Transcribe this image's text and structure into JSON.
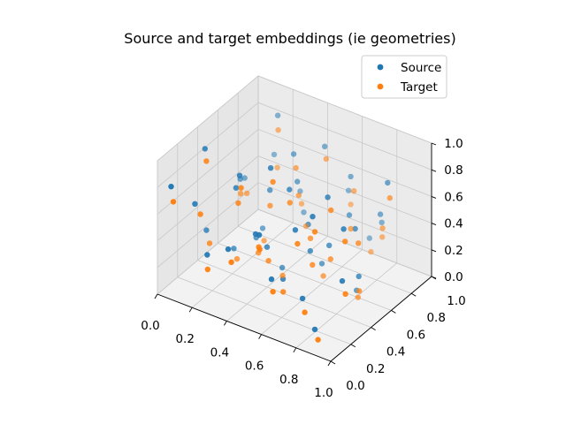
{
  "chart_data": {
    "type": "scatter",
    "projection": "3d",
    "title": "Source and target embeddings (ie geometries)",
    "xlabel": "",
    "ylabel": "",
    "zlabel": "",
    "xlim": [
      0,
      1
    ],
    "ylim": [
      0,
      1
    ],
    "zlim": [
      0,
      1
    ],
    "xticks": [
      "0.0",
      "0.2",
      "0.4",
      "0.6",
      "0.8",
      "1.0"
    ],
    "yticks": [
      "0.0",
      "0.2",
      "0.4",
      "0.6",
      "0.8",
      "1.0"
    ],
    "zticks": [
      "0.0",
      "0.2",
      "0.4",
      "0.6",
      "0.8",
      "1.0"
    ],
    "grid": true,
    "legend_position": "top-right",
    "series": [
      {
        "name": "Source",
        "color": "#1f77b4",
        "points": [
          [
            0.05,
            0.78,
            0.4
          ],
          [
            0.3,
            0.6,
            0.55
          ],
          [
            0.55,
            0.3,
            0.2
          ],
          [
            0.1,
            0.2,
            0.6
          ],
          [
            0.62,
            0.45,
            0.35
          ],
          [
            0.75,
            0.15,
            0.25
          ],
          [
            0.2,
            0.85,
            0.9
          ],
          [
            0.4,
            0.4,
            0.3
          ],
          [
            0.85,
            0.5,
            0.6
          ],
          [
            0.5,
            0.8,
            0.85
          ],
          [
            0.15,
            0.5,
            0.1
          ],
          [
            0.7,
            0.7,
            0.5
          ],
          [
            0.35,
            0.1,
            0.45
          ],
          [
            0.9,
            0.3,
            0.75
          ],
          [
            0.25,
            0.35,
            0.7
          ],
          [
            0.6,
            0.6,
            0.15
          ],
          [
            0.45,
            0.2,
            0.55
          ],
          [
            0.8,
            0.85,
            0.4
          ],
          [
            0.05,
            0.4,
            0.25
          ],
          [
            0.95,
            0.65,
            0.9
          ],
          [
            0.3,
            0.9,
            0.35
          ],
          [
            0.65,
            0.25,
            0.65
          ],
          [
            0.55,
            0.55,
            0.45
          ],
          [
            0.2,
            0.15,
            0.3
          ],
          [
            0.85,
            0.1,
            0.1
          ],
          [
            0.4,
            0.7,
            0.6
          ],
          [
            0.75,
            0.4,
            0.85
          ],
          [
            0.1,
            0.65,
            0.5
          ],
          [
            0.5,
            0.45,
            0.75
          ],
          [
            0.7,
            0.9,
            0.2
          ],
          [
            0.25,
            0.55,
            0.2
          ],
          [
            0.95,
            0.2,
            0.45
          ],
          [
            0.35,
            0.75,
            0.75
          ],
          [
            0.6,
            0.1,
            0.35
          ],
          [
            0.15,
            0.9,
            0.55
          ],
          [
            0.8,
            0.6,
            0.05
          ],
          [
            0.45,
            0.35,
            0.95
          ],
          [
            0.65,
            0.8,
            0.7
          ],
          [
            0.05,
            0.05,
            0.8
          ],
          [
            0.9,
            0.45,
            0.3
          ],
          [
            0.5,
            0.15,
            0.6
          ],
          [
            0.3,
            0.3,
            0.85
          ],
          [
            0.7,
            0.5,
            0.4
          ],
          [
            0.2,
            0.7,
            0.15
          ],
          [
            0.85,
            0.75,
            0.55
          ],
          [
            0.4,
            0.55,
            0.05
          ],
          [
            0.55,
            0.95,
            0.45
          ],
          [
            0.1,
            0.3,
            0.95
          ],
          [
            0.75,
            0.25,
            0.8
          ],
          [
            0.35,
            0.85,
            0.25
          ]
        ]
      },
      {
        "name": "Target",
        "color": "#ff7f0e",
        "points": [
          [
            0.08,
            0.75,
            0.32
          ],
          [
            0.33,
            0.55,
            0.48
          ],
          [
            0.58,
            0.25,
            0.15
          ],
          [
            0.12,
            0.22,
            0.52
          ],
          [
            0.65,
            0.42,
            0.28
          ],
          [
            0.78,
            0.12,
            0.18
          ],
          [
            0.22,
            0.82,
            0.82
          ],
          [
            0.42,
            0.38,
            0.22
          ],
          [
            0.88,
            0.48,
            0.52
          ],
          [
            0.52,
            0.78,
            0.78
          ],
          [
            0.18,
            0.48,
            0.05
          ],
          [
            0.72,
            0.68,
            0.42
          ],
          [
            0.38,
            0.08,
            0.38
          ],
          [
            0.92,
            0.28,
            0.68
          ],
          [
            0.28,
            0.32,
            0.62
          ],
          [
            0.62,
            0.58,
            0.08
          ],
          [
            0.48,
            0.18,
            0.48
          ],
          [
            0.82,
            0.82,
            0.32
          ],
          [
            0.08,
            0.38,
            0.18
          ],
          [
            0.98,
            0.62,
            0.82
          ],
          [
            0.32,
            0.88,
            0.28
          ],
          [
            0.68,
            0.22,
            0.58
          ],
          [
            0.58,
            0.52,
            0.38
          ],
          [
            0.22,
            0.12,
            0.22
          ],
          [
            0.88,
            0.08,
            0.05
          ],
          [
            0.42,
            0.68,
            0.52
          ],
          [
            0.78,
            0.38,
            0.78
          ],
          [
            0.12,
            0.62,
            0.42
          ],
          [
            0.52,
            0.42,
            0.68
          ],
          [
            0.72,
            0.88,
            0.12
          ],
          [
            0.28,
            0.52,
            0.12
          ],
          [
            0.98,
            0.18,
            0.38
          ],
          [
            0.38,
            0.72,
            0.68
          ],
          [
            0.62,
            0.08,
            0.28
          ],
          [
            0.18,
            0.88,
            0.48
          ],
          [
            0.82,
            0.58,
            0.02
          ],
          [
            0.48,
            0.32,
            0.88
          ],
          [
            0.68,
            0.78,
            0.62
          ],
          [
            0.08,
            0.02,
            0.72
          ],
          [
            0.92,
            0.42,
            0.22
          ],
          [
            0.52,
            0.12,
            0.52
          ],
          [
            0.32,
            0.28,
            0.78
          ],
          [
            0.72,
            0.48,
            0.32
          ],
          [
            0.22,
            0.68,
            0.08
          ],
          [
            0.88,
            0.72,
            0.48
          ],
          [
            0.42,
            0.52,
            0.02
          ],
          [
            0.58,
            0.92,
            0.38
          ],
          [
            0.12,
            0.28,
            0.88
          ],
          [
            0.78,
            0.22,
            0.72
          ],
          [
            0.38,
            0.82,
            0.18
          ]
        ]
      }
    ]
  }
}
